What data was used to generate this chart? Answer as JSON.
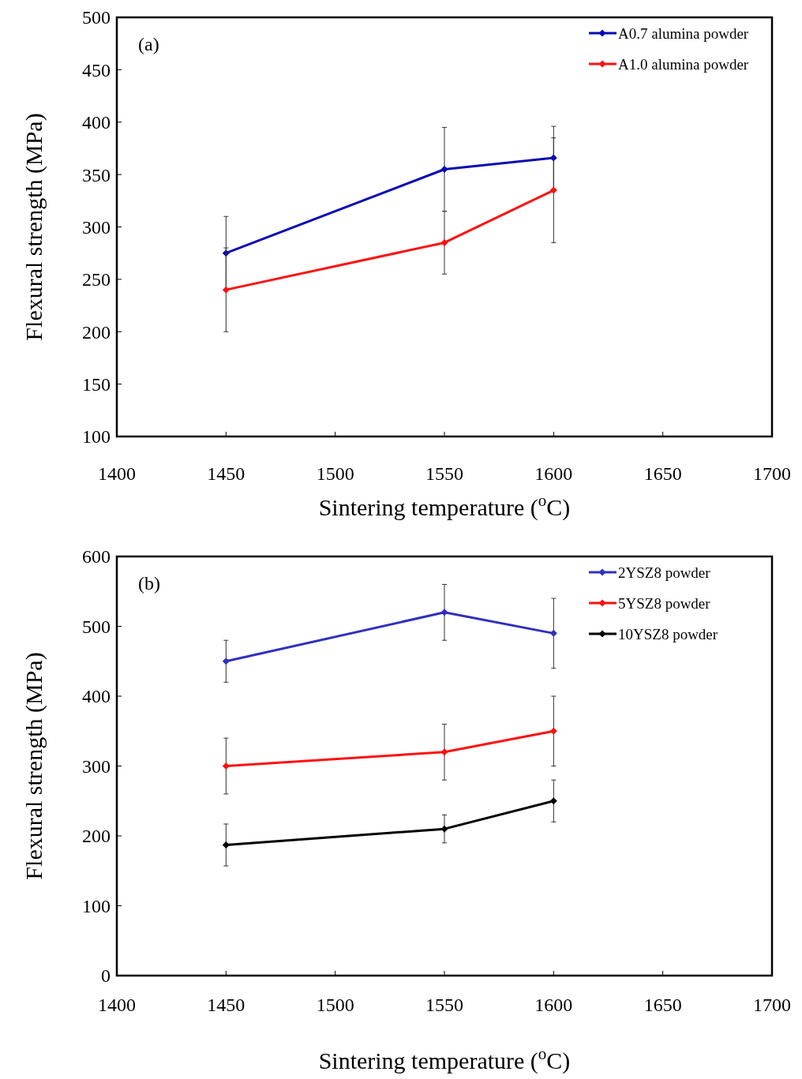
{
  "chart_data": [
    {
      "type": "line",
      "xlabel": "Sintering temperature ($^{o}$C)",
      "ylabel": "Flexural strength (MPa)",
      "x": [
        1450,
        1550,
        1600
      ],
      "xlim": [
        1400,
        1700
      ],
      "xticks": [
        1400,
        1450,
        1500,
        1550,
        1600,
        1650,
        1700
      ],
      "ylim": [
        100,
        500
      ],
      "yticks": [
        100,
        150,
        200,
        250,
        300,
        350,
        400,
        450,
        500
      ],
      "marker": "diamond",
      "legend": "top right",
      "annotations": [
        "(a)"
      ],
      "series": [
        {
          "name": "A0.7  alumina powder",
          "color": "#0a0ab4",
          "values": [
            275,
            355,
            366
          ],
          "errors": [
            35,
            40,
            30
          ]
        },
        {
          "name": "A1.0  alumina powder",
          "color": "#ff1010",
          "values": [
            240,
            285,
            335
          ],
          "errors": [
            40,
            30,
            50
          ]
        }
      ]
    },
    {
      "type": "line",
      "xlabel": "Sintering temperature ($^{o}$C)",
      "ylabel": "Flexural strength (MPa)",
      "x": [
        1450,
        1550,
        1600
      ],
      "xlim": [
        1400,
        1700
      ],
      "xticks": [
        1400,
        1450,
        1500,
        1550,
        1600,
        1650,
        1700
      ],
      "ylim": [
        0,
        600
      ],
      "yticks": [
        0,
        100,
        200,
        300,
        400,
        500,
        600
      ],
      "marker": "diamond",
      "legend": "top right",
      "annotations": [
        "(b)"
      ],
      "series": [
        {
          "name": "2YSZ8  powder",
          "color": "#3030c0",
          "values": [
            450,
            520,
            490
          ],
          "errors": [
            30,
            40,
            50
          ]
        },
        {
          "name": "5YSZ8 powder",
          "color": "#ff1010",
          "values": [
            300,
            320,
            350
          ],
          "errors": [
            40,
            40,
            50
          ]
        },
        {
          "name": "10YSZ8 powder",
          "color": "#000000",
          "values": [
            187,
            210,
            250
          ],
          "errors": [
            30,
            20,
            30
          ]
        }
      ]
    }
  ]
}
